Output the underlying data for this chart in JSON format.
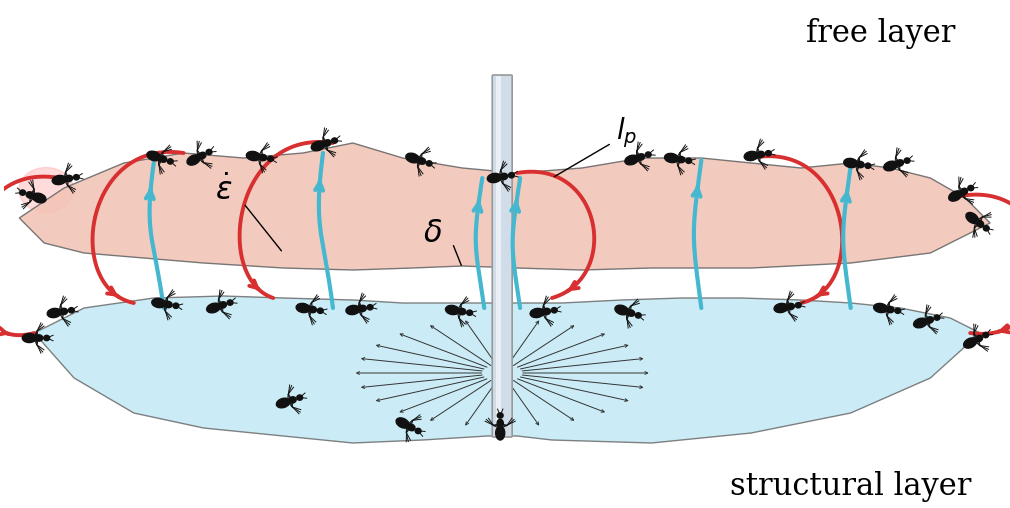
{
  "free_layer_label": "free layer",
  "structural_layer_label": "structural layer",
  "label_epsilon": "$\\dot{\\varepsilon}$",
  "label_delta": "$\\delta$",
  "label_lp": "$l_p$",
  "free_layer_color": "#f2c4b5",
  "structural_layer_color": "#c0e8f5",
  "free_layer_edge": "#666666",
  "structural_layer_edge": "#666666",
  "red_color": "#d83030",
  "blue_color": "#45b8d0",
  "ant_color": "#111111",
  "background": "#ffffff",
  "pole_color": "#d0dde8",
  "pole_edge": "#999999",
  "figsize": [
    10.1,
    5.08
  ],
  "dpi": 100
}
